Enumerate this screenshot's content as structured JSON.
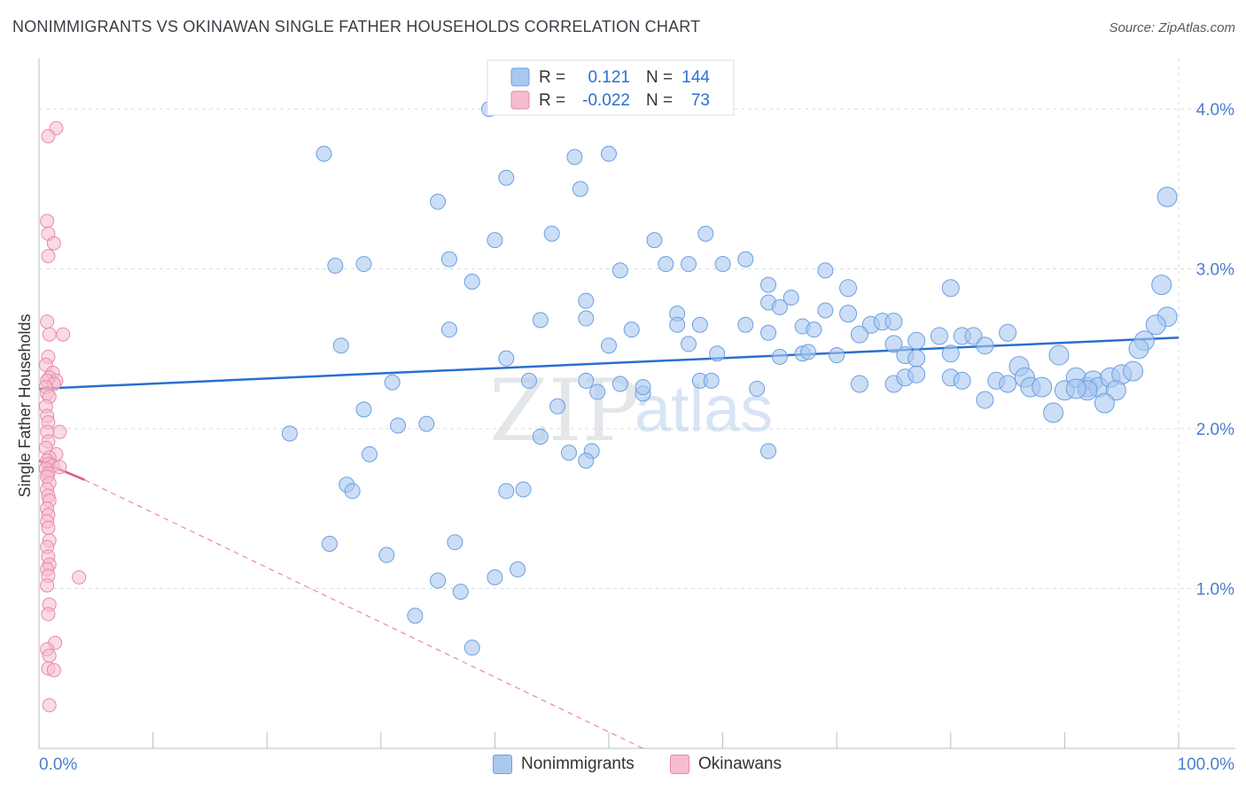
{
  "header": {
    "title": "NONIMMIGRANTS VS OKINAWAN SINGLE FATHER HOUSEHOLDS CORRELATION CHART",
    "source": "Source: ZipAtlas.com"
  },
  "watermark": {
    "zip": "ZIP",
    "atlas": "atlas"
  },
  "colors": {
    "blue_fill": "#a9c8f0",
    "blue_stroke": "#6d9fe0",
    "blue_line": "#2a6fcf",
    "pink_fill": "#f6bccd",
    "pink_stroke": "#e88aa7",
    "pink_line": "#e0567f",
    "grid": "#d6dbe1",
    "axis_text": "#4a7fd0"
  },
  "legend": {
    "rows": [
      {
        "r_label": "R =",
        "r_value": "0.121",
        "n_label": "N =",
        "n_value": "144"
      },
      {
        "r_label": "R =",
        "r_value": "-0.022",
        "n_label": "N =",
        "n_value": "73"
      }
    ]
  },
  "bottom_legend": [
    "Nonimmigrants",
    "Okinawans"
  ],
  "chart_data": {
    "type": "scatter",
    "title": "NONIMMIGRANTS VS OKINAWAN SINGLE FATHER HOUSEHOLDS CORRELATION CHART",
    "ylabel": "Single Father Households",
    "xlabel": "",
    "x_tick_labels": [
      "0.0%",
      "100.0%"
    ],
    "y_tick_labels": [
      "1.0%",
      "2.0%",
      "3.0%",
      "4.0%"
    ],
    "y_ticks": [
      1.0,
      2.0,
      3.0,
      4.0
    ],
    "xlim": [
      0,
      100
    ],
    "ylim": [
      0.0,
      4.25
    ],
    "grid": true,
    "legend_placement": "top-center",
    "series": [
      {
        "name": "Nonimmigrants",
        "color": "#a9c8f0",
        "trend": {
          "x": [
            0,
            100
          ],
          "y": [
            2.25,
            2.57
          ]
        },
        "points": [
          [
            25,
            3.72
          ],
          [
            39.5,
            4.0
          ],
          [
            47,
            3.7
          ],
          [
            50,
            3.72
          ],
          [
            41,
            3.57
          ],
          [
            47.5,
            3.5
          ],
          [
            35,
            3.42
          ],
          [
            99,
            3.45
          ],
          [
            45,
            3.22
          ],
          [
            40,
            3.18
          ],
          [
            54,
            3.18
          ],
          [
            58.5,
            3.22
          ],
          [
            26,
            3.02
          ],
          [
            28.5,
            3.03
          ],
          [
            36,
            3.06
          ],
          [
            55,
            3.03
          ],
          [
            57,
            3.03
          ],
          [
            60,
            3.03
          ],
          [
            62,
            3.06
          ],
          [
            51,
            2.99
          ],
          [
            38,
            2.92
          ],
          [
            69,
            2.99
          ],
          [
            71,
            2.88
          ],
          [
            80,
            2.88
          ],
          [
            64,
            2.9
          ],
          [
            66,
            2.82
          ],
          [
            48,
            2.8
          ],
          [
            64,
            2.79
          ],
          [
            65,
            2.76
          ],
          [
            69,
            2.74
          ],
          [
            56,
            2.72
          ],
          [
            44,
            2.68
          ],
          [
            48,
            2.69
          ],
          [
            56,
            2.65
          ],
          [
            58,
            2.65
          ],
          [
            62,
            2.65
          ],
          [
            71,
            2.72
          ],
          [
            73,
            2.65
          ],
          [
            74,
            2.67
          ],
          [
            75,
            2.67
          ],
          [
            36,
            2.62
          ],
          [
            52,
            2.62
          ],
          [
            67,
            2.64
          ],
          [
            64,
            2.6
          ],
          [
            68,
            2.62
          ],
          [
            72,
            2.59
          ],
          [
            26.5,
            2.52
          ],
          [
            50,
            2.52
          ],
          [
            57,
            2.53
          ],
          [
            75,
            2.53
          ],
          [
            77,
            2.55
          ],
          [
            79,
            2.58
          ],
          [
            81,
            2.58
          ],
          [
            82,
            2.58
          ],
          [
            83,
            2.52
          ],
          [
            85,
            2.6
          ],
          [
            98.5,
            2.9
          ],
          [
            99,
            2.7
          ],
          [
            98,
            2.65
          ],
          [
            97,
            2.55
          ],
          [
            96.5,
            2.5
          ],
          [
            59.5,
            2.47
          ],
          [
            65,
            2.45
          ],
          [
            67,
            2.47
          ],
          [
            67.5,
            2.48
          ],
          [
            70,
            2.46
          ],
          [
            76,
            2.46
          ],
          [
            77,
            2.44
          ],
          [
            80,
            2.47
          ],
          [
            86,
            2.39
          ],
          [
            86.5,
            2.32
          ],
          [
            89.5,
            2.46
          ],
          [
            41,
            2.44
          ],
          [
            31,
            2.29
          ],
          [
            43,
            2.3
          ],
          [
            48,
            2.3
          ],
          [
            51,
            2.28
          ],
          [
            58,
            2.3
          ],
          [
            59,
            2.3
          ],
          [
            63,
            2.25
          ],
          [
            72,
            2.28
          ],
          [
            75,
            2.28
          ],
          [
            76,
            2.32
          ],
          [
            77,
            2.34
          ],
          [
            80,
            2.32
          ],
          [
            81,
            2.3
          ],
          [
            84,
            2.3
          ],
          [
            85,
            2.28
          ],
          [
            87,
            2.26
          ],
          [
            88,
            2.26
          ],
          [
            90,
            2.24
          ],
          [
            91,
            2.32
          ],
          [
            92,
            2.26
          ],
          [
            92.5,
            2.3
          ],
          [
            93,
            2.26
          ],
          [
            94,
            2.32
          ],
          [
            95,
            2.34
          ],
          [
            96,
            2.36
          ],
          [
            94.5,
            2.24
          ],
          [
            93.5,
            2.16
          ],
          [
            92,
            2.24
          ],
          [
            91,
            2.25
          ],
          [
            89,
            2.1
          ],
          [
            83,
            2.18
          ],
          [
            49,
            2.23
          ],
          [
            53,
            2.22
          ],
          [
            28.5,
            2.12
          ],
          [
            31.5,
            2.02
          ],
          [
            34,
            2.03
          ],
          [
            45.5,
            2.14
          ],
          [
            53,
            2.26
          ],
          [
            22,
            1.97
          ],
          [
            44,
            1.95
          ],
          [
            29,
            1.84
          ],
          [
            46.5,
            1.85
          ],
          [
            48.5,
            1.86
          ],
          [
            48,
            1.8
          ],
          [
            64,
            1.86
          ],
          [
            27,
            1.65
          ],
          [
            27.5,
            1.61
          ],
          [
            41,
            1.61
          ],
          [
            42.5,
            1.62
          ],
          [
            25.5,
            1.28
          ],
          [
            36.5,
            1.29
          ],
          [
            30.5,
            1.21
          ],
          [
            42,
            1.12
          ],
          [
            35,
            1.05
          ],
          [
            40,
            1.07
          ],
          [
            37,
            0.98
          ],
          [
            33,
            0.83
          ],
          [
            38,
            0.63
          ]
        ]
      },
      {
        "name": "Okinawans",
        "color": "#f6bccd",
        "trend": {
          "x": [
            0,
            4
          ],
          "y": [
            1.8,
            1.68
          ]
        },
        "trend_dashed": {
          "x": [
            4,
            53
          ],
          "y": [
            1.68,
            0.0
          ]
        },
        "points": [
          [
            1.2,
            3.88
          ],
          [
            0.5,
            3.83
          ],
          [
            0.4,
            3.3
          ],
          [
            0.5,
            3.22
          ],
          [
            1.0,
            3.16
          ],
          [
            0.5,
            3.08
          ],
          [
            0.4,
            2.67
          ],
          [
            1.8,
            2.59
          ],
          [
            0.6,
            2.59
          ],
          [
            0.5,
            2.45
          ],
          [
            0.3,
            2.4
          ],
          [
            0.9,
            2.35
          ],
          [
            0.6,
            2.32
          ],
          [
            1.2,
            2.3
          ],
          [
            0.4,
            2.3
          ],
          [
            1.0,
            2.28
          ],
          [
            0.3,
            2.26
          ],
          [
            0.4,
            2.22
          ],
          [
            0.6,
            2.2
          ],
          [
            0.3,
            2.14
          ],
          [
            0.4,
            2.08
          ],
          [
            0.5,
            2.04
          ],
          [
            1.5,
            1.98
          ],
          [
            0.4,
            1.98
          ],
          [
            0.5,
            1.92
          ],
          [
            0.3,
            1.88
          ],
          [
            1.2,
            1.84
          ],
          [
            0.6,
            1.82
          ],
          [
            0.4,
            1.8
          ],
          [
            0.5,
            1.78
          ],
          [
            0.9,
            1.77
          ],
          [
            1.5,
            1.76
          ],
          [
            0.3,
            1.75
          ],
          [
            0.5,
            1.72
          ],
          [
            0.4,
            1.7
          ],
          [
            0.6,
            1.66
          ],
          [
            0.4,
            1.62
          ],
          [
            0.5,
            1.58
          ],
          [
            0.6,
            1.55
          ],
          [
            0.4,
            1.5
          ],
          [
            0.5,
            1.46
          ],
          [
            0.4,
            1.42
          ],
          [
            0.5,
            1.38
          ],
          [
            0.6,
            1.3
          ],
          [
            0.4,
            1.26
          ],
          [
            0.5,
            1.2
          ],
          [
            0.6,
            1.15
          ],
          [
            0.4,
            1.12
          ],
          [
            3.2,
            1.07
          ],
          [
            0.5,
            1.08
          ],
          [
            0.4,
            1.02
          ],
          [
            0.6,
            0.9
          ],
          [
            0.5,
            0.84
          ],
          [
            1.1,
            0.66
          ],
          [
            0.4,
            0.62
          ],
          [
            0.6,
            0.58
          ],
          [
            0.5,
            0.5
          ],
          [
            1.0,
            0.49
          ],
          [
            0.6,
            0.27
          ]
        ]
      }
    ]
  }
}
